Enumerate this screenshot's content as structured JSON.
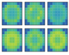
{
  "chart_data": [
    {
      "type": "heatmap",
      "tick_labels": false,
      "zlim": [
        0,
        1
      ],
      "z": [
        [
          0.2,
          0.2,
          0.4,
          0.45,
          0.45,
          0.4,
          0.2,
          0.2
        ],
        [
          0.2,
          0.45,
          0.6,
          0.55,
          0.55,
          0.6,
          0.45,
          0.2
        ],
        [
          0.4,
          0.6,
          0.5,
          0.45,
          0.45,
          0.5,
          0.6,
          0.4
        ],
        [
          0.45,
          0.55,
          0.45,
          0.4,
          0.4,
          0.45,
          0.55,
          0.45
        ],
        [
          0.45,
          0.55,
          0.45,
          0.4,
          0.4,
          0.45,
          0.55,
          0.45
        ],
        [
          0.4,
          0.6,
          0.5,
          0.45,
          0.45,
          0.5,
          0.6,
          0.4
        ],
        [
          0.2,
          0.45,
          0.6,
          0.55,
          0.55,
          0.6,
          0.45,
          0.2
        ],
        [
          0.2,
          0.2,
          0.4,
          0.45,
          0.45,
          0.4,
          0.2,
          0.2
        ]
      ]
    },
    {
      "type": "heatmap",
      "tick_labels": false,
      "zlim": [
        0,
        1
      ],
      "z": [
        [
          0.2,
          0.2,
          0.45,
          0.5,
          0.5,
          0.45,
          0.2,
          0.2
        ],
        [
          0.2,
          0.5,
          0.55,
          0.6,
          0.55,
          0.55,
          0.5,
          0.2
        ],
        [
          0.45,
          0.55,
          0.7,
          0.55,
          0.5,
          0.6,
          0.55,
          0.45
        ],
        [
          0.5,
          0.6,
          0.55,
          0.45,
          0.45,
          0.55,
          0.65,
          0.5
        ],
        [
          0.5,
          0.55,
          0.5,
          0.45,
          0.5,
          0.55,
          0.6,
          0.5
        ],
        [
          0.45,
          0.6,
          0.55,
          0.5,
          0.55,
          0.7,
          0.55,
          0.45
        ],
        [
          0.2,
          0.5,
          0.55,
          0.6,
          0.55,
          0.55,
          0.5,
          0.2
        ],
        [
          0.2,
          0.2,
          0.45,
          0.5,
          0.5,
          0.45,
          0.2,
          0.2
        ]
      ]
    },
    {
      "type": "heatmap",
      "tick_labels": false,
      "zlim": [
        0,
        1
      ],
      "z": [
        [
          0.2,
          0.2,
          0.35,
          0.4,
          0.4,
          0.35,
          0.2,
          0.2
        ],
        [
          0.2,
          0.4,
          0.5,
          0.45,
          0.45,
          0.5,
          0.4,
          0.2
        ],
        [
          0.35,
          0.5,
          0.45,
          0.4,
          0.4,
          0.45,
          0.5,
          0.35
        ],
        [
          0.4,
          0.45,
          0.4,
          0.35,
          0.35,
          0.4,
          0.45,
          0.4
        ],
        [
          0.4,
          0.45,
          0.4,
          0.35,
          0.35,
          0.4,
          0.45,
          0.4
        ],
        [
          0.35,
          0.5,
          0.45,
          0.4,
          0.4,
          0.45,
          0.5,
          0.35
        ],
        [
          0.2,
          0.4,
          0.5,
          0.45,
          0.45,
          0.5,
          0.4,
          0.2
        ],
        [
          0.2,
          0.2,
          0.35,
          0.4,
          0.4,
          0.35,
          0.2,
          0.2
        ]
      ]
    },
    {
      "type": "heatmap",
      "tick_labels": false,
      "zlim": [
        0,
        1
      ],
      "z": [
        [
          0.2,
          0.2,
          0.45,
          0.5,
          0.5,
          0.45,
          0.2,
          0.2
        ],
        [
          0.2,
          0.5,
          0.6,
          0.65,
          0.65,
          0.6,
          0.5,
          0.2
        ],
        [
          0.45,
          0.6,
          0.7,
          0.7,
          0.7,
          0.7,
          0.6,
          0.45
        ],
        [
          0.5,
          0.65,
          0.7,
          0.6,
          0.6,
          0.7,
          0.65,
          0.5
        ],
        [
          0.5,
          0.65,
          0.7,
          0.6,
          0.6,
          0.7,
          0.65,
          0.5
        ],
        [
          0.45,
          0.6,
          0.7,
          0.7,
          0.7,
          0.7,
          0.6,
          0.45
        ],
        [
          0.2,
          0.5,
          0.6,
          0.65,
          0.65,
          0.6,
          0.5,
          0.2
        ],
        [
          0.2,
          0.2,
          0.45,
          0.5,
          0.5,
          0.45,
          0.2,
          0.2
        ]
      ]
    },
    {
      "type": "heatmap",
      "tick_labels": false,
      "zlim": [
        0,
        1
      ],
      "z": [
        [
          0.2,
          0.2,
          0.4,
          0.5,
          0.5,
          0.4,
          0.2,
          0.2
        ],
        [
          0.2,
          0.45,
          0.55,
          0.6,
          0.6,
          0.55,
          0.45,
          0.2
        ],
        [
          0.4,
          0.55,
          0.65,
          0.55,
          0.55,
          0.65,
          0.55,
          0.4
        ],
        [
          0.5,
          0.6,
          0.55,
          0.45,
          0.45,
          0.55,
          0.6,
          0.5
        ],
        [
          0.5,
          0.6,
          0.55,
          0.45,
          0.45,
          0.55,
          0.6,
          0.5
        ],
        [
          0.4,
          0.55,
          0.65,
          0.55,
          0.55,
          0.65,
          0.55,
          0.4
        ],
        [
          0.2,
          0.45,
          0.55,
          0.6,
          0.6,
          0.55,
          0.45,
          0.2
        ],
        [
          0.2,
          0.2,
          0.4,
          0.5,
          0.5,
          0.4,
          0.2,
          0.2
        ]
      ]
    },
    {
      "type": "heatmap",
      "tick_labels": false,
      "zlim": [
        0,
        1
      ],
      "z": [
        [
          0.2,
          0.2,
          0.45,
          0.55,
          0.55,
          0.45,
          0.2,
          0.2
        ],
        [
          0.2,
          0.55,
          0.65,
          0.7,
          0.7,
          0.65,
          0.55,
          0.2
        ],
        [
          0.45,
          0.65,
          0.72,
          0.65,
          0.65,
          0.72,
          0.65,
          0.45
        ],
        [
          0.55,
          0.7,
          0.65,
          0.55,
          0.55,
          0.65,
          0.7,
          0.55
        ],
        [
          0.55,
          0.7,
          0.65,
          0.55,
          0.55,
          0.65,
          0.7,
          0.55
        ],
        [
          0.45,
          0.65,
          0.72,
          0.65,
          0.65,
          0.72,
          0.65,
          0.45
        ],
        [
          0.2,
          0.55,
          0.65,
          0.7,
          0.7,
          0.65,
          0.55,
          0.2
        ],
        [
          0.2,
          0.2,
          0.45,
          0.55,
          0.55,
          0.45,
          0.2,
          0.2
        ]
      ]
    }
  ]
}
